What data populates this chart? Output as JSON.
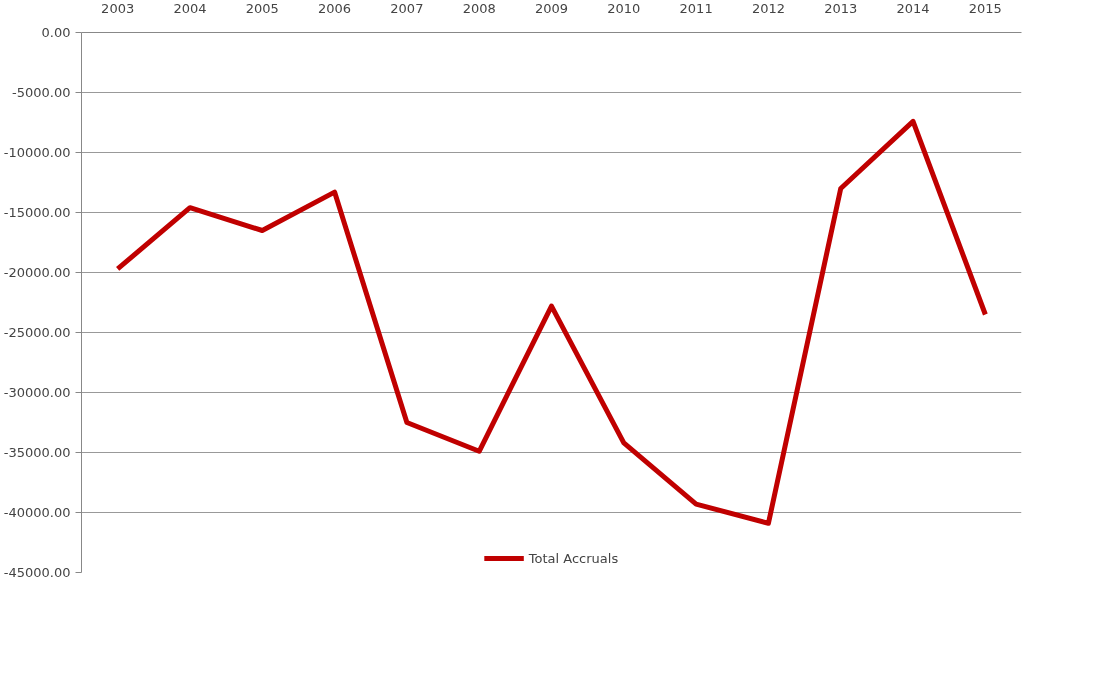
{
  "chart_data": {
    "type": "line",
    "categories": [
      "2003",
      "2004",
      "2005",
      "2006",
      "2007",
      "2008",
      "2009",
      "2010",
      "2011",
      "2012",
      "2013",
      "2014",
      "2015"
    ],
    "series": [
      {
        "name": "Total Accruals",
        "color": "#c00000",
        "values": [
          -19700,
          -14600,
          -16500,
          -13300,
          -32500,
          -34900,
          -22800,
          -34200,
          -39300,
          -40900,
          -13000,
          -7400,
          -23500
        ]
      }
    ],
    "ylim": [
      -45000,
      0
    ],
    "yticks": [
      {
        "value": 0,
        "label": "0.00"
      },
      {
        "value": -5000,
        "label": "-5000.00"
      },
      {
        "value": -10000,
        "label": "-10000.00"
      },
      {
        "value": -15000,
        "label": "-15000.00"
      },
      {
        "value": -20000,
        "label": "-20000.00"
      },
      {
        "value": -25000,
        "label": "-25000.00"
      },
      {
        "value": -30000,
        "label": "-30000.00"
      },
      {
        "value": -35000,
        "label": "-35000.00"
      },
      {
        "value": -40000,
        "label": "-40000.00"
      },
      {
        "value": -45000,
        "label": "-45000.00"
      }
    ],
    "grid": "y",
    "legend": "bottom",
    "marker": "none",
    "line_style": "solid"
  }
}
